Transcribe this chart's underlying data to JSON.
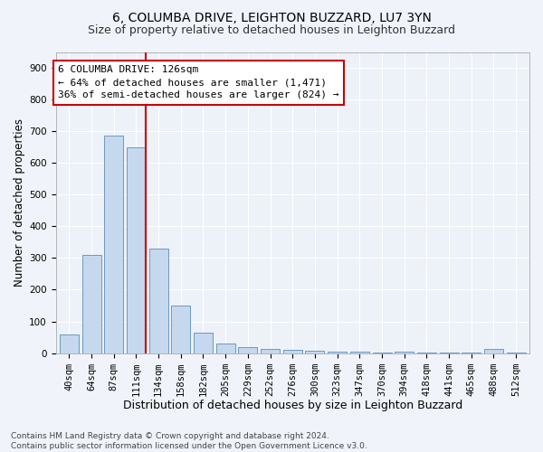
{
  "title1": "6, COLUMBA DRIVE, LEIGHTON BUZZARD, LU7 3YN",
  "title2": "Size of property relative to detached houses in Leighton Buzzard",
  "xlabel": "Distribution of detached houses by size in Leighton Buzzard",
  "ylabel": "Number of detached properties",
  "categories": [
    "40sqm",
    "64sqm",
    "87sqm",
    "111sqm",
    "134sqm",
    "158sqm",
    "182sqm",
    "205sqm",
    "229sqm",
    "252sqm",
    "276sqm",
    "300sqm",
    "323sqm",
    "347sqm",
    "370sqm",
    "394sqm",
    "418sqm",
    "441sqm",
    "465sqm",
    "488sqm",
    "512sqm"
  ],
  "values": [
    60,
    310,
    685,
    650,
    330,
    150,
    65,
    30,
    18,
    12,
    10,
    8,
    5,
    5,
    2,
    5,
    2,
    2,
    2,
    12,
    2
  ],
  "bar_color": "#c5d8ee",
  "bar_edge_color": "#5b8db8",
  "annotation_line1": "6 COLUMBA DRIVE: 126sqm",
  "annotation_line2": "← 64% of detached houses are smaller (1,471)",
  "annotation_line3": "36% of semi-detached houses are larger (824) →",
  "annotation_box_color": "#ffffff",
  "annotation_box_edge": "#cc0000",
  "vline_color": "#cc0000",
  "vline_pos": 3.43,
  "ylim": [
    0,
    950
  ],
  "yticks": [
    0,
    100,
    200,
    300,
    400,
    500,
    600,
    700,
    800,
    900
  ],
  "footer": "Contains HM Land Registry data © Crown copyright and database right 2024.\nContains public sector information licensed under the Open Government Licence v3.0.",
  "bg_color": "#f0f4fa",
  "plot_bg_color": "#edf1f8",
  "grid_color": "#ffffff",
  "title1_fontsize": 10,
  "title2_fontsize": 9,
  "xlabel_fontsize": 9,
  "ylabel_fontsize": 8.5,
  "tick_fontsize": 7.5,
  "annotation_fontsize": 8,
  "footer_fontsize": 6.5
}
